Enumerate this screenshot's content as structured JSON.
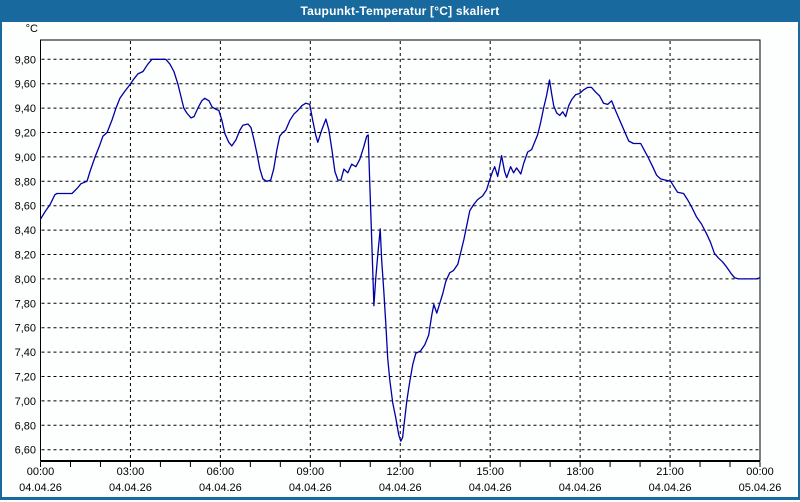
{
  "window": {
    "title": "Taupunkt-Temperatur [°C] skaliert"
  },
  "colors": {
    "titlebar_bg": "#18699E",
    "window_border": "#18699E",
    "plot_background": "#FDFEFE",
    "grid": "#000000",
    "frame": "#000000",
    "series_line": "#0000A5",
    "label_text": "#000000",
    "title_text": "#FFFFFF"
  },
  "chart_data": {
    "type": "line",
    "title": "Taupunkt-Temperatur [°C] skaliert",
    "unit_label": "°C",
    "ylabel": "°C",
    "xlabel": "",
    "grid": "dashed",
    "legend": "none",
    "ylim": [
      6.51,
      9.96
    ],
    "xlim_hours": [
      0,
      24
    ],
    "y_ticks": [
      {
        "value": 9.8,
        "label": "9,80"
      },
      {
        "value": 9.6,
        "label": "9,60"
      },
      {
        "value": 9.4,
        "label": "9,40"
      },
      {
        "value": 9.2,
        "label": "9,20"
      },
      {
        "value": 9.0,
        "label": "9,00"
      },
      {
        "value": 8.8,
        "label": "8,80"
      },
      {
        "value": 8.6,
        "label": "8,60"
      },
      {
        "value": 8.4,
        "label": "8,40"
      },
      {
        "value": 8.2,
        "label": "8,20"
      },
      {
        "value": 8.0,
        "label": "8,00"
      },
      {
        "value": 7.8,
        "label": "7,80"
      },
      {
        "value": 7.6,
        "label": "7,60"
      },
      {
        "value": 7.4,
        "label": "7,40"
      },
      {
        "value": 7.2,
        "label": "7,20"
      },
      {
        "value": 7.0,
        "label": "7,00"
      },
      {
        "value": 6.8,
        "label": "6,80"
      },
      {
        "value": 6.6,
        "label": "6,60"
      }
    ],
    "x_major_ticks": [
      {
        "hour": 0,
        "time": "00:00",
        "date": "04.04.26"
      },
      {
        "hour": 3,
        "time": "03:00",
        "date": "04.04.26"
      },
      {
        "hour": 6,
        "time": "06:00",
        "date": "04.04.26"
      },
      {
        "hour": 9,
        "time": "09:00",
        "date": "04.04.26"
      },
      {
        "hour": 12,
        "time": "12:00",
        "date": "04.04.26"
      },
      {
        "hour": 15,
        "time": "15:00",
        "date": "04.04.26"
      },
      {
        "hour": 18,
        "time": "18:00",
        "date": "04.04.26"
      },
      {
        "hour": 21,
        "time": "21:00",
        "date": "04.04.26"
      },
      {
        "hour": 24,
        "time": "00:00",
        "date": "05.04.26"
      }
    ],
    "x_minor_tick_every_hours": 1,
    "series": [
      {
        "name": "Taupunkt-Temperatur",
        "unit": "°C",
        "points": [
          [
            0,
            8.49
          ],
          [
            0.15,
            8.55
          ],
          [
            0.32,
            8.61
          ],
          [
            0.48,
            8.69
          ],
          [
            0.55,
            8.7
          ],
          [
            0.85,
            8.7
          ],
          [
            1.05,
            8.7
          ],
          [
            1.25,
            8.75
          ],
          [
            1.35,
            8.78
          ],
          [
            1.55,
            8.8
          ],
          [
            1.65,
            8.88
          ],
          [
            1.82,
            9.0
          ],
          [
            1.98,
            9.1
          ],
          [
            2.08,
            9.17
          ],
          [
            2.22,
            9.2
          ],
          [
            2.38,
            9.3
          ],
          [
            2.52,
            9.4
          ],
          [
            2.65,
            9.48
          ],
          [
            2.82,
            9.54
          ],
          [
            2.98,
            9.59
          ],
          [
            3.12,
            9.64
          ],
          [
            3.25,
            9.68
          ],
          [
            3.42,
            9.7
          ],
          [
            3.58,
            9.76
          ],
          [
            3.72,
            9.8
          ],
          [
            4.18,
            9.8
          ],
          [
            4.32,
            9.76
          ],
          [
            4.45,
            9.7
          ],
          [
            4.58,
            9.6
          ],
          [
            4.68,
            9.5
          ],
          [
            4.78,
            9.4
          ],
          [
            4.88,
            9.36
          ],
          [
            5.02,
            9.32
          ],
          [
            5.12,
            9.33
          ],
          [
            5.25,
            9.4
          ],
          [
            5.38,
            9.46
          ],
          [
            5.48,
            9.48
          ],
          [
            5.62,
            9.46
          ],
          [
            5.72,
            9.41
          ],
          [
            5.85,
            9.39
          ],
          [
            5.95,
            9.38
          ],
          [
            6.05,
            9.3
          ],
          [
            6.15,
            9.19
          ],
          [
            6.28,
            9.12
          ],
          [
            6.38,
            9.09
          ],
          [
            6.52,
            9.14
          ],
          [
            6.65,
            9.22
          ],
          [
            6.75,
            9.26
          ],
          [
            6.92,
            9.27
          ],
          [
            7.02,
            9.24
          ],
          [
            7.12,
            9.14
          ],
          [
            7.22,
            9.03
          ],
          [
            7.32,
            8.9
          ],
          [
            7.42,
            8.82
          ],
          [
            7.55,
            8.8
          ],
          [
            7.68,
            8.81
          ],
          [
            7.78,
            8.9
          ],
          [
            7.88,
            9.05
          ],
          [
            7.98,
            9.17
          ],
          [
            8.08,
            9.2
          ],
          [
            8.18,
            9.22
          ],
          [
            8.32,
            9.3
          ],
          [
            8.45,
            9.35
          ],
          [
            8.58,
            9.38
          ],
          [
            8.72,
            9.42
          ],
          [
            8.85,
            9.44
          ],
          [
            8.98,
            9.43
          ],
          [
            9.08,
            9.3
          ],
          [
            9.18,
            9.18
          ],
          [
            9.25,
            9.12
          ],
          [
            9.38,
            9.22
          ],
          [
            9.52,
            9.31
          ],
          [
            9.62,
            9.22
          ],
          [
            9.72,
            9.06
          ],
          [
            9.82,
            8.88
          ],
          [
            9.92,
            8.81
          ],
          [
            10.02,
            8.81
          ],
          [
            10.12,
            8.9
          ],
          [
            10.25,
            8.87
          ],
          [
            10.38,
            8.94
          ],
          [
            10.52,
            8.92
          ],
          [
            10.65,
            8.98
          ],
          [
            10.78,
            9.08
          ],
          [
            10.88,
            9.17
          ],
          [
            10.93,
            9.18
          ],
          [
            10.98,
            8.8
          ],
          [
            11.05,
            8.3
          ],
          [
            11.12,
            7.78
          ],
          [
            11.18,
            8.0
          ],
          [
            11.25,
            8.2
          ],
          [
            11.33,
            8.41
          ],
          [
            11.38,
            8.15
          ],
          [
            11.45,
            7.9
          ],
          [
            11.52,
            7.62
          ],
          [
            11.58,
            7.35
          ],
          [
            11.65,
            7.17
          ],
          [
            11.75,
            6.98
          ],
          [
            11.85,
            6.86
          ],
          [
            11.95,
            6.72
          ],
          [
            12.02,
            6.67
          ],
          [
            12.08,
            6.7
          ],
          [
            12.15,
            6.85
          ],
          [
            12.22,
            7.0
          ],
          [
            12.32,
            7.16
          ],
          [
            12.42,
            7.3
          ],
          [
            12.52,
            7.39
          ],
          [
            12.68,
            7.41
          ],
          [
            12.82,
            7.46
          ],
          [
            12.95,
            7.54
          ],
          [
            13.05,
            7.7
          ],
          [
            13.12,
            7.79
          ],
          [
            13.22,
            7.72
          ],
          [
            13.32,
            7.8
          ],
          [
            13.42,
            7.88
          ],
          [
            13.52,
            7.98
          ],
          [
            13.65,
            8.05
          ],
          [
            13.78,
            8.07
          ],
          [
            13.92,
            8.12
          ],
          [
            14.02,
            8.22
          ],
          [
            14.12,
            8.32
          ],
          [
            14.22,
            8.44
          ],
          [
            14.32,
            8.56
          ],
          [
            14.45,
            8.61
          ],
          [
            14.58,
            8.65
          ],
          [
            14.75,
            8.68
          ],
          [
            14.88,
            8.73
          ],
          [
            14.98,
            8.81
          ],
          [
            15.08,
            8.88
          ],
          [
            15.15,
            8.92
          ],
          [
            15.25,
            8.84
          ],
          [
            15.38,
            9.01
          ],
          [
            15.48,
            8.88
          ],
          [
            15.55,
            8.83
          ],
          [
            15.68,
            8.92
          ],
          [
            15.78,
            8.87
          ],
          [
            15.88,
            8.91
          ],
          [
            16.02,
            8.86
          ],
          [
            16.12,
            8.95
          ],
          [
            16.25,
            9.04
          ],
          [
            16.38,
            9.06
          ],
          [
            16.48,
            9.12
          ],
          [
            16.58,
            9.18
          ],
          [
            16.68,
            9.28
          ],
          [
            16.78,
            9.4
          ],
          [
            16.88,
            9.5
          ],
          [
            16.98,
            9.63
          ],
          [
            17.05,
            9.52
          ],
          [
            17.12,
            9.42
          ],
          [
            17.22,
            9.36
          ],
          [
            17.32,
            9.34
          ],
          [
            17.42,
            9.37
          ],
          [
            17.52,
            9.33
          ],
          [
            17.62,
            9.42
          ],
          [
            17.72,
            9.47
          ],
          [
            17.85,
            9.51
          ],
          [
            17.98,
            9.52
          ],
          [
            18.12,
            9.55
          ],
          [
            18.25,
            9.57
          ],
          [
            18.38,
            9.57
          ],
          [
            18.52,
            9.53
          ],
          [
            18.65,
            9.5
          ],
          [
            18.78,
            9.44
          ],
          [
            18.92,
            9.43
          ],
          [
            19.05,
            9.46
          ],
          [
            19.18,
            9.38
          ],
          [
            19.32,
            9.3
          ],
          [
            19.48,
            9.21
          ],
          [
            19.62,
            9.13
          ],
          [
            19.78,
            9.11
          ],
          [
            20.02,
            9.11
          ],
          [
            20.15,
            9.05
          ],
          [
            20.28,
            8.99
          ],
          [
            20.42,
            8.92
          ],
          [
            20.55,
            8.85
          ],
          [
            20.68,
            8.82
          ],
          [
            20.85,
            8.81
          ],
          [
            21.02,
            8.8
          ],
          [
            21.12,
            8.76
          ],
          [
            21.25,
            8.71
          ],
          [
            21.45,
            8.7
          ],
          [
            21.58,
            8.65
          ],
          [
            21.72,
            8.59
          ],
          [
            21.88,
            8.51
          ],
          [
            22.05,
            8.45
          ],
          [
            22.22,
            8.37
          ],
          [
            22.35,
            8.3
          ],
          [
            22.48,
            8.21
          ],
          [
            22.62,
            8.17
          ],
          [
            22.75,
            8.14
          ],
          [
            22.88,
            8.1
          ],
          [
            23.02,
            8.05
          ],
          [
            23.15,
            8.01
          ],
          [
            23.28,
            8.0
          ],
          [
            23.58,
            8.0
          ],
          [
            23.88,
            8.0
          ],
          [
            24,
            8.01
          ]
        ]
      }
    ]
  }
}
